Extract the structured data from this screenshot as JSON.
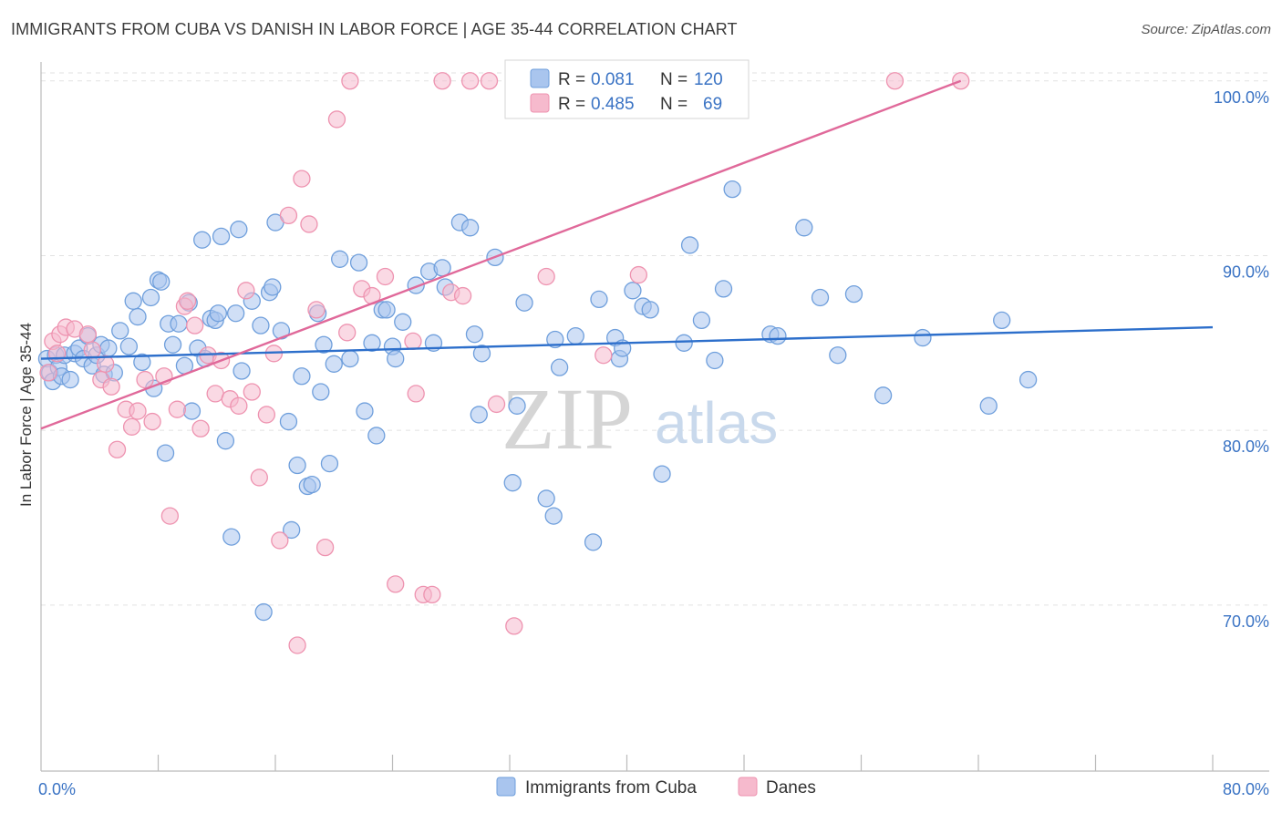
{
  "title": "IMMIGRANTS FROM CUBA VS DANISH IN LABOR FORCE | AGE 35-44 CORRELATION CHART",
  "source": "Source: ZipAtlas.com",
  "watermark": {
    "zip": "ZIP",
    "atlas": "atlas"
  },
  "colors": {
    "blue_fill": "#a9c5ee",
    "blue_stroke": "#6f9fdc",
    "blue_line": "#2d6fcb",
    "pink_fill": "#f6bacd",
    "pink_stroke": "#ee93b0",
    "pink_line": "#e0699a",
    "grid": "#e2e2e2",
    "tick_text": "#3a73c4"
  },
  "legend": {
    "rows": [
      {
        "r_label": "R =",
        "r_value": "0.081",
        "n_label": "N =",
        "n_value": "120"
      },
      {
        "r_label": "R =",
        "r_value": "0.485",
        "n_label": "N =",
        "n_value": "69"
      }
    ]
  },
  "chart_data": {
    "type": "scatter",
    "title": "IMMIGRANTS FROM CUBA VS DANISH IN LABOR FORCE | AGE 35-44 CORRELATION CHART",
    "xlabel": "",
    "ylabel": "In Labor Force | Age 35-44",
    "xlim": [
      0,
      80
    ],
    "ylim": [
      60.5,
      101.5
    ],
    "x_tick_labels": [
      "0.0%",
      "80.0%"
    ],
    "y_ticks": [
      70,
      80,
      90,
      100
    ],
    "y_tick_labels": [
      "70.0%",
      "80.0%",
      "90.0%",
      "100.0%"
    ],
    "grid": true,
    "legend_position": "top-center",
    "series": [
      {
        "name": "Immigrants from Cuba",
        "color": "#a9c5ee",
        "trend": {
          "x": [
            0,
            80
          ],
          "y": [
            84.1,
            85.9
          ]
        },
        "points": [
          [
            0.4,
            84.1
          ],
          [
            0.6,
            83.3
          ],
          [
            0.8,
            82.8
          ],
          [
            1.0,
            84.3
          ],
          [
            1.2,
            83.6
          ],
          [
            1.4,
            83.1
          ],
          [
            1.6,
            84.3
          ],
          [
            2.0,
            82.9
          ],
          [
            2.3,
            84.4
          ],
          [
            2.6,
            84.7
          ],
          [
            2.9,
            84.1
          ],
          [
            3.2,
            85.4
          ],
          [
            3.5,
            83.7
          ],
          [
            3.8,
            84.3
          ],
          [
            4.1,
            84.9
          ],
          [
            4.3,
            83.2
          ],
          [
            4.6,
            84.7
          ],
          [
            5.0,
            83.3
          ],
          [
            5.4,
            85.7
          ],
          [
            6.0,
            84.8
          ],
          [
            6.3,
            87.4
          ],
          [
            6.6,
            86.5
          ],
          [
            6.9,
            83.9
          ],
          [
            7.5,
            87.6
          ],
          [
            7.7,
            82.4
          ],
          [
            8.0,
            88.6
          ],
          [
            8.2,
            88.5
          ],
          [
            8.5,
            78.7
          ],
          [
            8.7,
            86.1
          ],
          [
            9.0,
            84.9
          ],
          [
            9.4,
            86.1
          ],
          [
            9.8,
            83.7
          ],
          [
            10.1,
            87.3
          ],
          [
            10.3,
            81.1
          ],
          [
            10.7,
            84.7
          ],
          [
            11.0,
            90.9
          ],
          [
            11.2,
            84.1
          ],
          [
            11.6,
            86.4
          ],
          [
            11.9,
            86.3
          ],
          [
            12.1,
            86.7
          ],
          [
            12.3,
            91.1
          ],
          [
            12.6,
            79.4
          ],
          [
            13.0,
            73.9
          ],
          [
            13.3,
            86.7
          ],
          [
            13.5,
            91.5
          ],
          [
            13.7,
            83.4
          ],
          [
            14.4,
            87.4
          ],
          [
            15.0,
            86.0
          ],
          [
            15.2,
            69.6
          ],
          [
            15.6,
            87.9
          ],
          [
            15.8,
            88.2
          ],
          [
            16.0,
            91.9
          ],
          [
            16.4,
            85.7
          ],
          [
            16.9,
            80.5
          ],
          [
            17.1,
            74.3
          ],
          [
            17.5,
            78.0
          ],
          [
            17.8,
            83.1
          ],
          [
            18.2,
            76.8
          ],
          [
            18.5,
            76.9
          ],
          [
            18.9,
            86.7
          ],
          [
            19.1,
            82.2
          ],
          [
            19.3,
            84.9
          ],
          [
            19.7,
            78.1
          ],
          [
            20.0,
            83.8
          ],
          [
            20.4,
            89.8
          ],
          [
            21.1,
            84.1
          ],
          [
            21.7,
            89.6
          ],
          [
            22.1,
            81.1
          ],
          [
            22.6,
            85.0
          ],
          [
            22.9,
            79.7
          ],
          [
            23.3,
            86.9
          ],
          [
            23.6,
            86.9
          ],
          [
            24.0,
            84.8
          ],
          [
            24.2,
            84.1
          ],
          [
            24.7,
            86.2
          ],
          [
            25.6,
            88.3
          ],
          [
            26.5,
            89.1
          ],
          [
            26.8,
            85.0
          ],
          [
            27.4,
            89.3
          ],
          [
            27.6,
            88.2
          ],
          [
            28.6,
            91.9
          ],
          [
            29.3,
            91.6
          ],
          [
            29.6,
            85.5
          ],
          [
            29.9,
            80.9
          ],
          [
            30.1,
            84.4
          ],
          [
            31.0,
            89.9
          ],
          [
            32.2,
            77.0
          ],
          [
            32.5,
            81.4
          ],
          [
            33.0,
            87.3
          ],
          [
            34.5,
            76.1
          ],
          [
            35.0,
            75.1
          ],
          [
            35.1,
            85.2
          ],
          [
            35.4,
            83.6
          ],
          [
            36.5,
            85.4
          ],
          [
            37.7,
            73.6
          ],
          [
            38.1,
            87.5
          ],
          [
            39.2,
            85.3
          ],
          [
            39.5,
            84.1
          ],
          [
            39.7,
            84.7
          ],
          [
            40.4,
            88.0
          ],
          [
            41.1,
            87.1
          ],
          [
            41.6,
            86.9
          ],
          [
            42.4,
            77.5
          ],
          [
            43.9,
            85.0
          ],
          [
            44.3,
            90.6
          ],
          [
            45.1,
            86.3
          ],
          [
            46.0,
            84.0
          ],
          [
            46.6,
            88.1
          ],
          [
            47.2,
            93.8
          ],
          [
            49.8,
            85.5
          ],
          [
            50.3,
            85.4
          ],
          [
            52.1,
            91.6
          ],
          [
            53.2,
            87.6
          ],
          [
            54.4,
            84.3
          ],
          [
            55.5,
            87.8
          ],
          [
            57.5,
            82.0
          ],
          [
            60.2,
            85.3
          ],
          [
            64.7,
            81.4
          ],
          [
            65.6,
            86.3
          ],
          [
            67.4,
            82.9
          ]
        ]
      },
      {
        "name": "Danes",
        "color": "#f6bacd",
        "trend": {
          "x": [
            0,
            62.8
          ],
          "y": [
            80.1,
            100.0
          ]
        },
        "points": [
          [
            0.5,
            83.3
          ],
          [
            0.8,
            85.1
          ],
          [
            1.1,
            84.4
          ],
          [
            1.3,
            85.5
          ],
          [
            1.7,
            85.9
          ],
          [
            2.3,
            85.8
          ],
          [
            3.2,
            85.5
          ],
          [
            3.5,
            84.6
          ],
          [
            4.1,
            82.9
          ],
          [
            4.4,
            83.8
          ],
          [
            4.8,
            82.5
          ],
          [
            5.2,
            78.9
          ],
          [
            5.8,
            81.2
          ],
          [
            6.2,
            80.2
          ],
          [
            6.6,
            81.1
          ],
          [
            7.1,
            82.9
          ],
          [
            7.6,
            80.5
          ],
          [
            8.4,
            83.1
          ],
          [
            8.8,
            75.1
          ],
          [
            9.3,
            81.2
          ],
          [
            9.8,
            87.1
          ],
          [
            10.0,
            87.4
          ],
          [
            10.5,
            86.0
          ],
          [
            10.9,
            80.1
          ],
          [
            11.4,
            84.3
          ],
          [
            11.9,
            82.1
          ],
          [
            12.3,
            84.0
          ],
          [
            12.9,
            81.8
          ],
          [
            13.5,
            81.4
          ],
          [
            14.0,
            88.0
          ],
          [
            14.4,
            82.2
          ],
          [
            14.9,
            77.3
          ],
          [
            15.4,
            80.9
          ],
          [
            15.9,
            84.4
          ],
          [
            16.3,
            73.7
          ],
          [
            16.9,
            92.3
          ],
          [
            17.5,
            67.7
          ],
          [
            17.8,
            94.4
          ],
          [
            18.3,
            91.8
          ],
          [
            18.8,
            86.9
          ],
          [
            19.4,
            73.3
          ],
          [
            20.2,
            97.8
          ],
          [
            20.9,
            85.6
          ],
          [
            21.1,
            100.0
          ],
          [
            21.9,
            88.1
          ],
          [
            22.6,
            87.7
          ],
          [
            23.5,
            88.8
          ],
          [
            24.2,
            71.2
          ],
          [
            25.4,
            85.1
          ],
          [
            25.6,
            82.1
          ],
          [
            26.1,
            70.6
          ],
          [
            26.7,
            70.6
          ],
          [
            27.4,
            100.0
          ],
          [
            28.0,
            87.9
          ],
          [
            28.8,
            87.7
          ],
          [
            29.3,
            100.0
          ],
          [
            30.6,
            100.0
          ],
          [
            31.1,
            81.5
          ],
          [
            32.3,
            68.8
          ],
          [
            33.0,
            100.0
          ],
          [
            33.7,
            100.0
          ],
          [
            34.3,
            100.0
          ],
          [
            34.5,
            88.8
          ],
          [
            35.0,
            100.0
          ],
          [
            38.4,
            84.3
          ],
          [
            40.8,
            88.9
          ],
          [
            47.1,
            100.0
          ],
          [
            58.3,
            100.0
          ],
          [
            62.8,
            100.0
          ]
        ]
      }
    ]
  },
  "bottom_legend": [
    {
      "label": "Immigrants from Cuba"
    },
    {
      "label": "Danes"
    }
  ]
}
